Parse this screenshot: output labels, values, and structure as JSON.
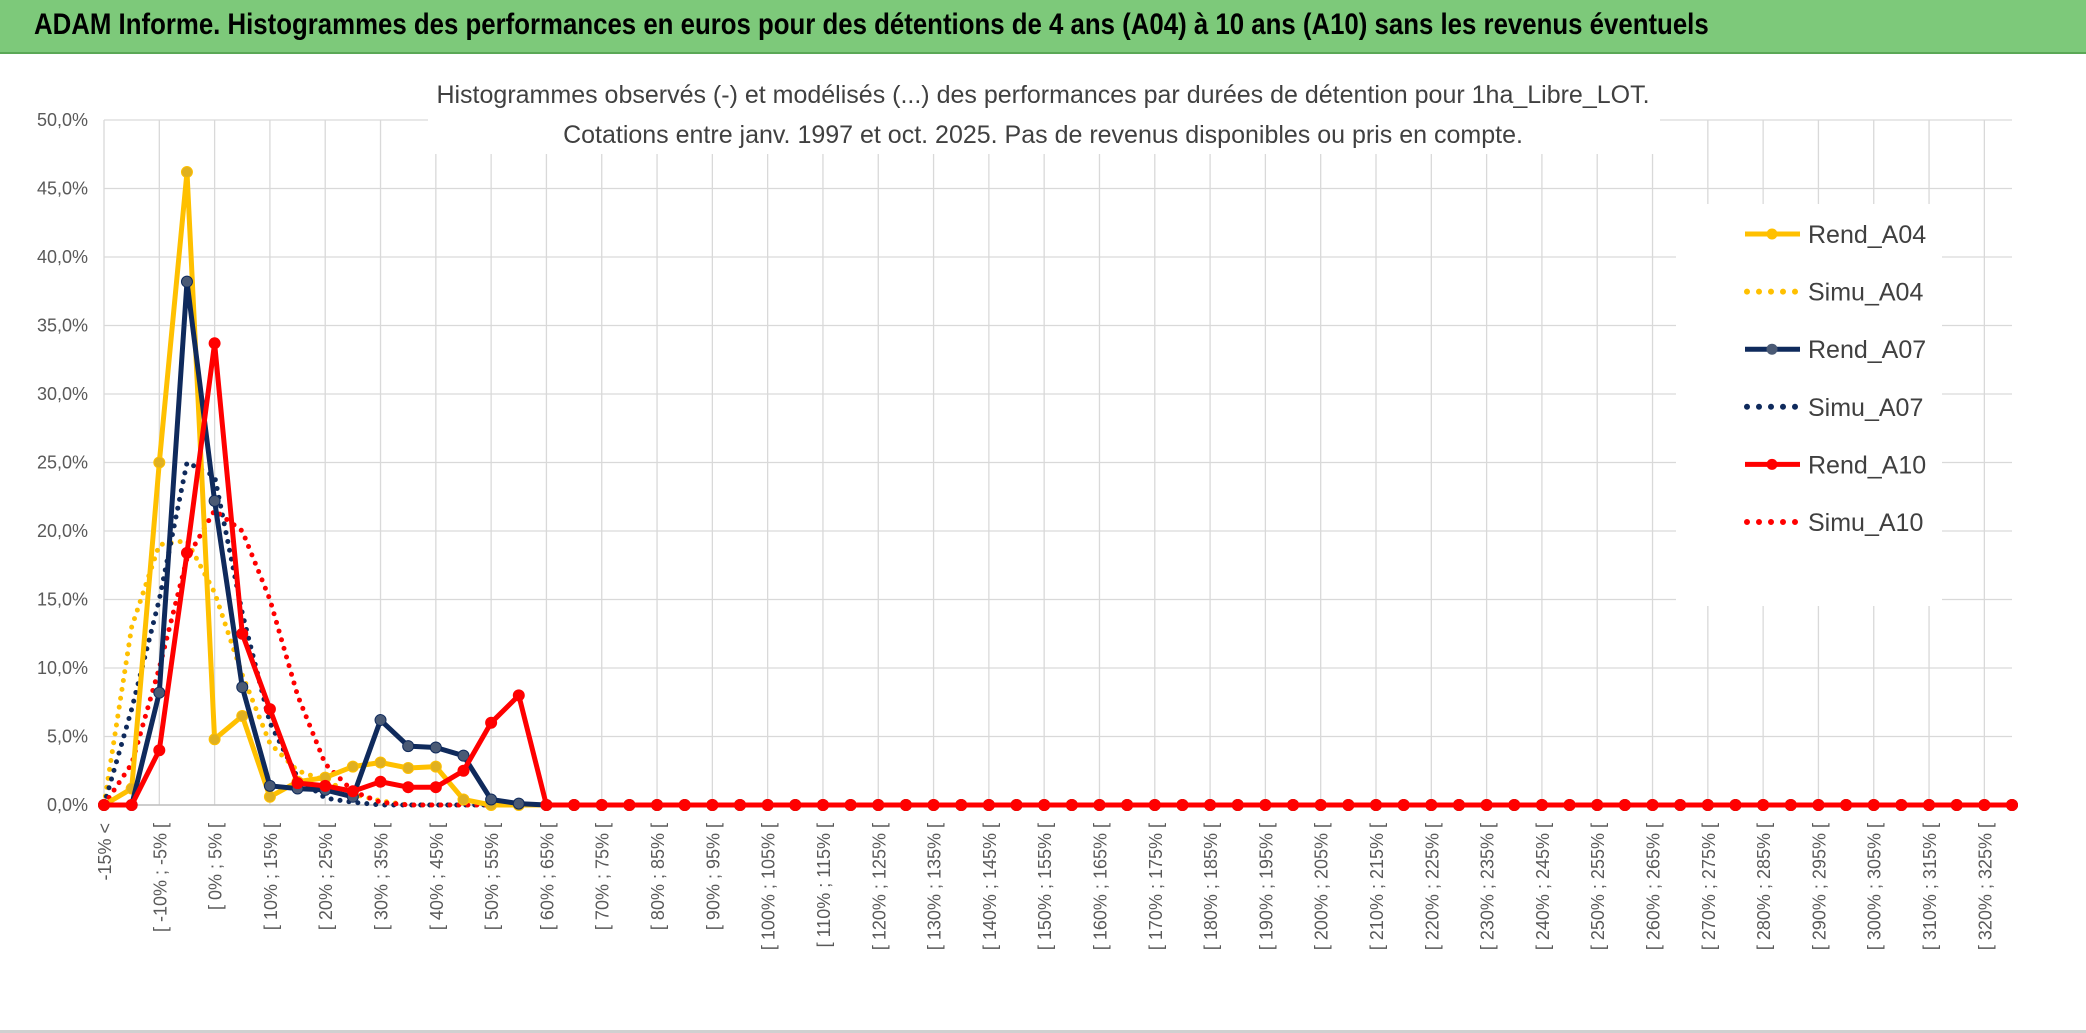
{
  "header": {
    "title": "ADAM Informe. Histogrammes des performances en euros pour des détentions de 4 ans (A04) à 10 ans (A10) sans les revenus éventuels"
  },
  "colors": {
    "banner": "#7dc97a",
    "A04": "#ffc000",
    "A07": "#0f2a5c",
    "A10": "#ff0000",
    "grid": "#d9d9d9"
  },
  "chart_data": {
    "type": "line",
    "title": "Histogrammes observés (-) et modélisés (...) des performances par durées de détention pour 1ha_Libre_LOT.",
    "subtitle": "Cotations entre janv. 1997 et oct. 2025. Pas de revenus disponibles ou pris en compte.",
    "ylim": [
      0,
      0.5
    ],
    "y_ticks": [
      "0,0%",
      "5,0%",
      "10,0%",
      "15,0%",
      "20,0%",
      "25,0%",
      "30,0%",
      "35,0%",
      "40,0%",
      "45,0%",
      "50,0%"
    ],
    "x_tick_labels": [
      "-15% <",
      "[ -10% ; -5% [",
      "[ 0% ; 5% [",
      "[ 10% ; 15% [",
      "[ 20% ; 25% [",
      "[ 30% ; 35% [",
      "[ 40% ; 45% [",
      "[ 50% ; 55% [",
      "[ 60% ; 65% [",
      "[ 70% ; 75% [",
      "[ 80% ; 85% [",
      "[ 90% ; 95% [",
      "[ 100% ; 105% [",
      "[ 110% ; 115% [",
      "[ 120% ; 125% [",
      "[ 130% ; 135% [",
      "[ 140% ; 145% [",
      "[ 150% ; 155% [",
      "[ 160% ; 165% [",
      "[ 170% ; 175% [",
      "[ 180% ; 185% [",
      "[ 190% ; 195% [",
      "[ 200% ; 205% [",
      "[ 210% ; 215% [",
      "[ 220% ; 225% [",
      "[ 230% ; 235% [",
      "[ 240% ; 245% [",
      "[ 250% ; 255% [",
      "[ 260% ; 265% [",
      "[ 270% ; 275% [",
      "[ 280% ; 285% [",
      "[ 290% ; 295% [",
      "[ 300% ; 305% [",
      "[ 310% ; 315% [",
      "[ 320% ; 325% ["
    ],
    "n_categories": 70,
    "grid": true,
    "legend_position": "right",
    "series": [
      {
        "name": "Rend_A04",
        "style": "solid",
        "color": "#ffc000",
        "marker": true,
        "values": [
          0.0,
          0.012,
          0.25,
          0.462,
          0.048,
          0.065,
          0.006,
          0.017,
          0.02,
          0.028,
          0.031,
          0.027,
          0.028,
          0.004,
          0.0,
          0.0,
          0.0,
          0.0
        ]
      },
      {
        "name": "Simu_A04",
        "style": "dotted",
        "color": "#ffc000",
        "marker": false,
        "values": [
          0.0,
          0.13,
          0.19,
          0.193,
          0.155,
          0.095,
          0.045,
          0.025,
          0.018,
          0.008,
          0.003,
          0.0
        ]
      },
      {
        "name": "Rend_A07",
        "style": "solid",
        "color": "#0f2a5c",
        "marker": true,
        "values": [
          0.0,
          0.0,
          0.082,
          0.382,
          0.222,
          0.086,
          0.014,
          0.012,
          0.011,
          0.006,
          0.062,
          0.043,
          0.042,
          0.036,
          0.004,
          0.001,
          0.0,
          0.0
        ]
      },
      {
        "name": "Simu_A07",
        "style": "dotted",
        "color": "#0f2a5c",
        "marker": false,
        "values": [
          0.0,
          0.07,
          0.15,
          0.25,
          0.24,
          0.14,
          0.06,
          0.02,
          0.005,
          0.002,
          0.0
        ]
      },
      {
        "name": "Rend_A10",
        "style": "solid",
        "color": "#ff0000",
        "marker": true,
        "values": [
          0.0,
          0.0,
          0.04,
          0.184,
          0.337,
          0.125,
          0.07,
          0.016,
          0.014,
          0.01,
          0.017,
          0.013,
          0.013,
          0.025,
          0.06,
          0.08,
          0.0,
          0.0
        ]
      },
      {
        "name": "Simu_A10",
        "style": "dotted",
        "color": "#ff0000",
        "marker": false,
        "values": [
          0.0,
          0.03,
          0.1,
          0.18,
          0.215,
          0.2,
          0.15,
          0.08,
          0.03,
          0.01,
          0.002,
          0.0
        ]
      }
    ]
  }
}
